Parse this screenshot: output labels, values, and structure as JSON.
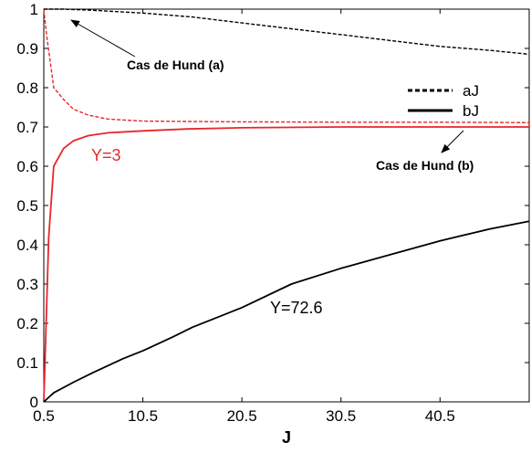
{
  "chart_data": {
    "type": "line",
    "title": "",
    "xlabel": "J",
    "ylabel": "",
    "xlim": [
      0.5,
      49.5
    ],
    "ylim": [
      0,
      1
    ],
    "xticks": [
      "0.5",
      "10.5",
      "20.5",
      "30.5",
      "40.5"
    ],
    "xtick_values": [
      0.5,
      10.5,
      20.5,
      30.5,
      40.5
    ],
    "yticks": [
      "0",
      "0.1",
      "0.2",
      "0.3",
      "0.4",
      "0.5",
      "0.6",
      "0.7",
      "0.8",
      "0.9",
      "1"
    ],
    "ytick_values": [
      0,
      0.1,
      0.2,
      0.3,
      0.4,
      0.5,
      0.6,
      0.7,
      0.8,
      0.9,
      1
    ],
    "grid": false,
    "legend": {
      "placement": "top-right",
      "entries": [
        {
          "label": "aJ",
          "style": "dashed"
        },
        {
          "label": "bJ",
          "style": "solid"
        }
      ]
    },
    "series": [
      {
        "label": "aJ",
        "curve": "Y=3",
        "color": "#e8262b",
        "style": "dashed",
        "x": [
          0.5,
          0.8,
          1.5,
          2.5,
          3.5,
          5,
          7,
          10.5,
          15,
          20.5,
          30.5,
          40.5,
          49.5
        ],
        "y": [
          1.0,
          0.93,
          0.8,
          0.77,
          0.745,
          0.73,
          0.72,
          0.715,
          0.714,
          0.713,
          0.712,
          0.712,
          0.711
        ]
      },
      {
        "label": "bJ",
        "curve": "Y=3",
        "color": "#e8262b",
        "style": "solid",
        "x": [
          0.5,
          1.0,
          1.5,
          2.5,
          3.5,
          5,
          7,
          10.5,
          15,
          20.5,
          30.5,
          40.5,
          49.5
        ],
        "y": [
          0,
          0.42,
          0.6,
          0.645,
          0.665,
          0.678,
          0.685,
          0.69,
          0.695,
          0.698,
          0.7,
          0.7,
          0.7
        ]
      },
      {
        "label": "aJ",
        "curve": "Y=72.6",
        "color": "#000000",
        "style": "dashed",
        "x": [
          0.5,
          2.5,
          5.5,
          10.5,
          15.5,
          20.5,
          25.5,
          30.5,
          35.5,
          40.5,
          45.5,
          49.5
        ],
        "y": [
          1.0,
          1.0,
          0.997,
          0.99,
          0.98,
          0.965,
          0.95,
          0.935,
          0.92,
          0.905,
          0.895,
          0.885
        ]
      },
      {
        "label": "bJ",
        "curve": "Y=72.6",
        "color": "#000000",
        "style": "solid",
        "x": [
          0.5,
          1.5,
          3.5,
          5.5,
          8.5,
          10.5,
          13.5,
          15.5,
          18.5,
          20.5,
          25.5,
          30.5,
          35.5,
          40.5,
          45.5,
          49.5
        ],
        "y": [
          0,
          0.023,
          0.05,
          0.075,
          0.11,
          0.13,
          0.165,
          0.19,
          0.22,
          0.24,
          0.3,
          0.34,
          0.375,
          0.41,
          0.44,
          0.46
        ]
      }
    ],
    "annotations": [
      {
        "text": "Cas de Hund (a)",
        "style": "bold"
      },
      {
        "text": "Cas de Hund (b)",
        "style": "bold"
      },
      {
        "text": "Y=3",
        "color": "#e8262b"
      },
      {
        "text": "Y=72.6",
        "color": "#000000"
      }
    ]
  }
}
